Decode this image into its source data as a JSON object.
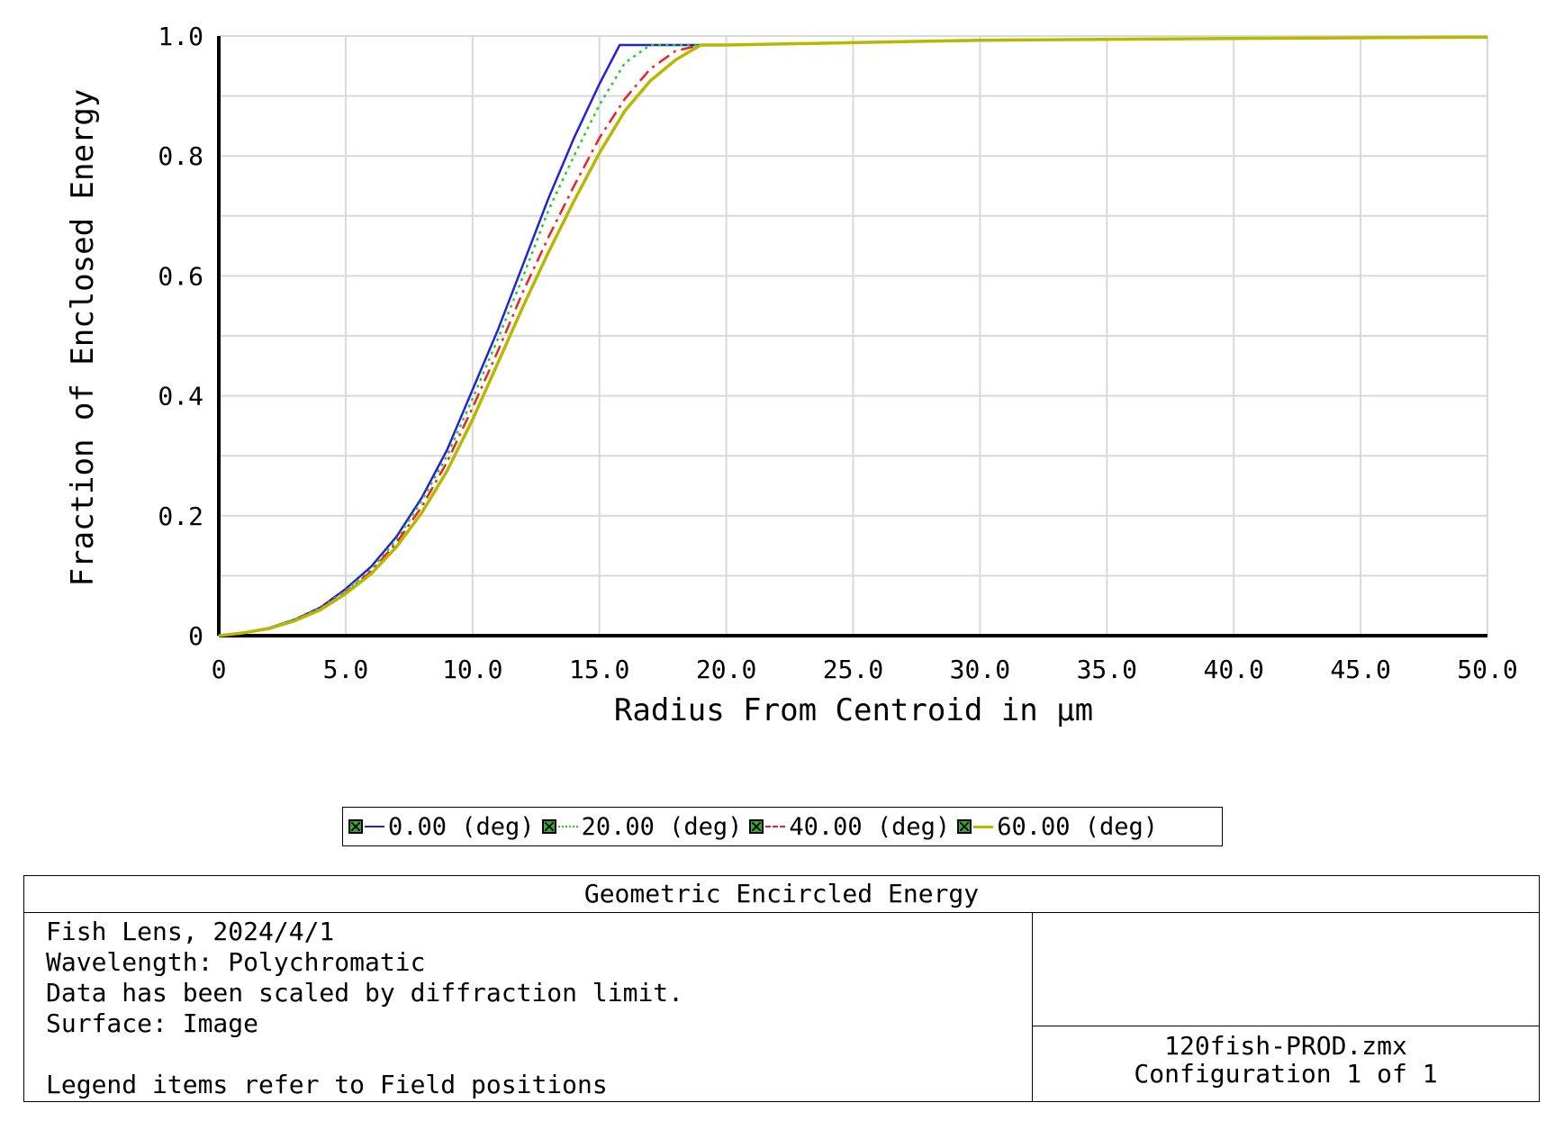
{
  "chart_data": {
    "type": "line",
    "xlabel": "Radius From Centroid in µm",
    "ylabel": "Fraction of Enclosed Energy",
    "xlim": [
      0,
      50
    ],
    "ylim": [
      0,
      1
    ],
    "xticks": [
      "0",
      "5.0",
      "10.0",
      "15.0",
      "20.0",
      "25.0",
      "30.0",
      "35.0",
      "40.0",
      "45.0",
      "50.0"
    ],
    "yticks": [
      "0",
      "0.2",
      "0.4",
      "0.6",
      "0.8",
      "1.0"
    ],
    "grid": true,
    "legend_position": "bottom",
    "series": [
      {
        "name": "0.00 (deg)",
        "color": "#2222dd",
        "dash": "solid",
        "x": [
          0,
          1,
          2,
          3,
          4,
          5,
          6,
          7,
          8,
          9,
          10,
          11,
          12,
          13,
          14,
          15,
          15.8,
          20,
          30,
          40,
          50
        ],
        "y": [
          0,
          0.005,
          0.013,
          0.027,
          0.047,
          0.078,
          0.115,
          0.165,
          0.23,
          0.31,
          0.41,
          0.51,
          0.62,
          0.73,
          0.83,
          0.92,
          0.985,
          0.985,
          0.993,
          0.996,
          0.998
        ]
      },
      {
        "name": "20.00 (deg)",
        "color": "#22cc22",
        "dash": "dotted",
        "x": [
          0,
          1,
          2,
          3,
          4,
          5,
          6,
          7,
          8,
          9,
          10,
          11,
          12,
          13,
          14,
          15,
          16,
          17,
          20,
          30,
          40,
          50
        ],
        "y": [
          0,
          0.005,
          0.013,
          0.027,
          0.046,
          0.075,
          0.11,
          0.16,
          0.225,
          0.3,
          0.395,
          0.495,
          0.6,
          0.71,
          0.8,
          0.885,
          0.955,
          0.985,
          0.985,
          0.993,
          0.996,
          0.998
        ]
      },
      {
        "name": "40.00 (deg)",
        "color": "#ee2222",
        "dash": "dashdot",
        "x": [
          0,
          1,
          2,
          3,
          4,
          5,
          6,
          7,
          8,
          9,
          10,
          11,
          12,
          13,
          14,
          15,
          16,
          17,
          18,
          19,
          20,
          30,
          40,
          50
        ],
        "y": [
          0,
          0.005,
          0.013,
          0.026,
          0.045,
          0.072,
          0.107,
          0.155,
          0.215,
          0.29,
          0.38,
          0.475,
          0.575,
          0.665,
          0.75,
          0.83,
          0.895,
          0.945,
          0.975,
          0.985,
          0.985,
          0.993,
          0.996,
          0.998
        ]
      },
      {
        "name": "60.00 (deg)",
        "color": "#b8b800",
        "dash": "solid",
        "x": [
          0,
          1,
          2,
          3,
          4,
          5,
          6,
          7,
          8,
          9,
          10,
          11,
          12,
          13,
          14,
          15,
          16,
          17,
          18,
          19,
          20,
          30,
          40,
          50
        ],
        "y": [
          0,
          0.005,
          0.012,
          0.025,
          0.043,
          0.07,
          0.103,
          0.148,
          0.205,
          0.275,
          0.36,
          0.455,
          0.55,
          0.64,
          0.725,
          0.805,
          0.875,
          0.925,
          0.96,
          0.985,
          0.985,
          0.993,
          0.996,
          0.998
        ]
      }
    ]
  },
  "info": {
    "title": "Geometric Encircled Energy",
    "lines": [
      "Fish Lens, 2024/4/1",
      "Wavelength: Polychromatic",
      "Data has been scaled by diffraction limit.",
      "Surface: Image",
      "",
      "Legend items refer to Field positions"
    ],
    "file": "120fish-PROD.zmx",
    "configuration": "Configuration 1 of 1"
  }
}
